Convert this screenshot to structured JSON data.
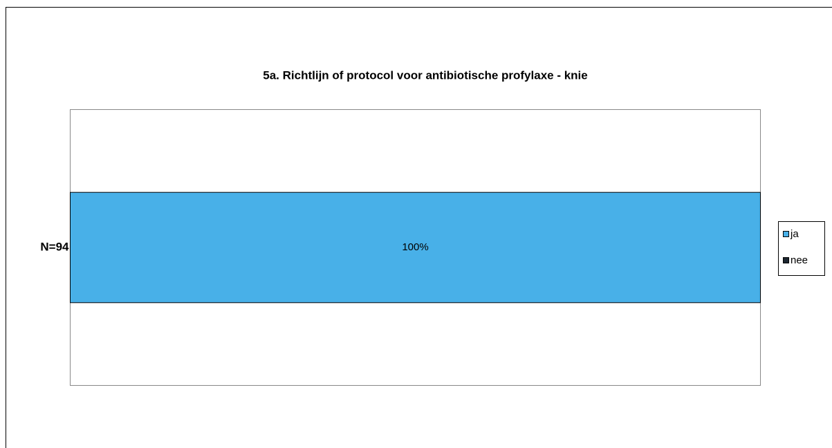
{
  "chart_data": {
    "type": "stacked-bar-horizontal",
    "title": "5a. Richtlijn of protocol voor antibiotische profylaxe - knie",
    "categories": [
      "N=94"
    ],
    "series": [
      {
        "name": "ja",
        "color": "#48b0e8",
        "values": [
          100
        ],
        "value_labels": [
          "100%"
        ]
      },
      {
        "name": "nee",
        "color": "#1c2630",
        "values": [
          0
        ]
      }
    ],
    "xlim": [
      0,
      100
    ]
  }
}
